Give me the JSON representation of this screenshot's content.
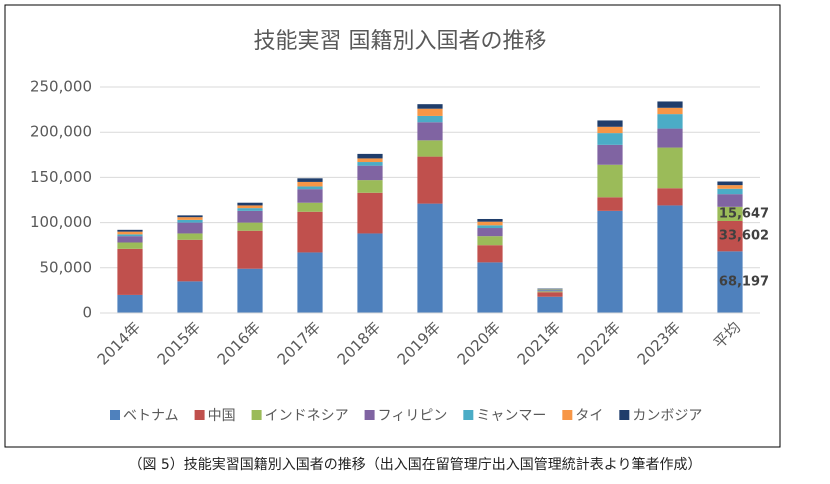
{
  "chart_data": {
    "type": "stacked_bar",
    "title": "技能実習 国籍別入国者の推移",
    "caption": "（図 5）技能実習国籍別入国者の推移（出入国在留管理庁出入国管理統計表より筆者作成）",
    "categories": [
      "2014年",
      "2015年",
      "2016年",
      "2017年",
      "2018年",
      "2019年",
      "2020年",
      "2021年",
      "2022年",
      "2023年",
      "平均"
    ],
    "series": [
      {
        "name": "ベトナム",
        "color": "#4f81bd",
        "values": [
          20000,
          35000,
          49000,
          67000,
          88000,
          121000,
          56000,
          18000,
          113000,
          119000,
          68197
        ],
        "value_labels": [
          null,
          null,
          null,
          null,
          null,
          null,
          null,
          null,
          null,
          null,
          "68,197"
        ]
      },
      {
        "name": "中国",
        "color": "#c0504d",
        "values": [
          51000,
          46000,
          42000,
          45000,
          45000,
          52000,
          19000,
          5000,
          15000,
          19000,
          33602
        ],
        "value_labels": [
          null,
          null,
          null,
          null,
          null,
          null,
          null,
          null,
          null,
          null,
          "33,602"
        ]
      },
      {
        "name": "インドネシア",
        "color": "#9bbb59",
        "values": [
          7000,
          7000,
          9000,
          10000,
          14000,
          18000,
          10000,
          1000,
          36000,
          45000,
          15647
        ],
        "value_labels": [
          null,
          null,
          null,
          null,
          null,
          null,
          null,
          null,
          null,
          null,
          "15,647"
        ]
      },
      {
        "name": "フィリピン",
        "color": "#8064a2",
        "values": [
          7000,
          12000,
          13000,
          15000,
          16000,
          20000,
          9000,
          1000,
          22000,
          21000,
          14000
        ]
      },
      {
        "name": "ミャンマー",
        "color": "#4bacc6",
        "values": [
          2000,
          3000,
          3000,
          3000,
          4000,
          7000,
          3000,
          1000,
          13000,
          16000,
          6000
        ]
      },
      {
        "name": "タイ",
        "color": "#f79646",
        "values": [
          3000,
          3000,
          3000,
          5000,
          4000,
          8000,
          4000,
          500,
          7000,
          7000,
          4000
        ]
      },
      {
        "name": "カンボジア",
        "color": "#1f3d6b",
        "values": [
          2000,
          2000,
          3000,
          4000,
          5000,
          5000,
          3000,
          500,
          7000,
          7000,
          4000
        ]
      }
    ],
    "ylim": [
      0,
      250000
    ],
    "yticks": [
      0,
      {
        "value": 50000,
        "label": "50,000"
      },
      {
        "value": 100000,
        "label": "100,000"
      },
      {
        "value": 150000,
        "label": "150,000"
      },
      {
        "value": 200000,
        "label": "200,000"
      },
      {
        "value": 250000,
        "label": "250,000"
      }
    ],
    "grid": true
  }
}
